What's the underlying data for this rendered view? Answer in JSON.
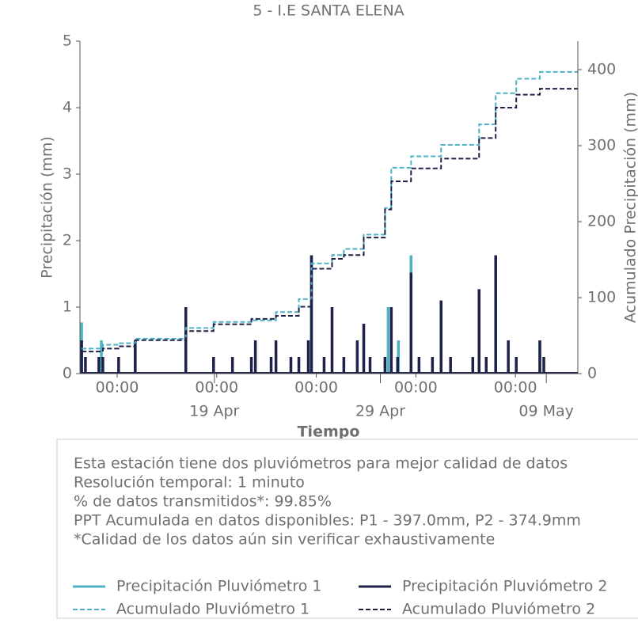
{
  "chart_data": {
    "type": "rain-gauge",
    "title": "5 - I.E SANTA ELENA",
    "xlabel": "Tiempo",
    "ylabel": "Precipitación (mm)",
    "y2label": "Acumulado Precipitación (mm)",
    "xlim": [
      0,
      30
    ],
    "xticks": [
      {
        "value": 2.24,
        "label": "00:00"
      },
      {
        "value": 8.24,
        "label": "00:00"
      },
      {
        "value": 14.24,
        "label": "00:00"
      },
      {
        "value": 20.24,
        "label": "00:00"
      },
      {
        "value": 26.24,
        "label": "00:00"
      }
    ],
    "xdate_ticks": [
      {
        "value": 8.1,
        "label": "19 Apr"
      },
      {
        "value": 18.1,
        "label": "29 Apr"
      },
      {
        "value": 28.1,
        "label": "09 May"
      }
    ],
    "ylim": [
      0,
      5
    ],
    "yticks": [
      0,
      1,
      2,
      3,
      4,
      5
    ],
    "y2lim": [
      0,
      437.5
    ],
    "y2ticks": [
      0,
      100,
      200,
      300,
      400
    ],
    "series": [
      {
        "name": "Precipitación Pluviómetro 1",
        "color": "#4db3c4",
        "style": "stem",
        "x": [
          0.1,
          1.29,
          3.33,
          6.38,
          13.95,
          18.57,
          19.19,
          19.95,
          21.76,
          24.05,
          25.05,
          27.71
        ],
        "values": [
          0.77,
          0.5,
          0.5,
          1.0,
          1.78,
          1.0,
          0.5,
          1.78,
          1.1,
          1.27,
          1.2,
          0.5
        ]
      },
      {
        "name": "Precipitación Pluviómetro 2",
        "color": "#1e2148",
        "style": "stem",
        "x": [
          0.1,
          0.33,
          1.14,
          1.38,
          2.33,
          3.33,
          6.38,
          8.05,
          9.19,
          10.33,
          10.57,
          11.52,
          11.81,
          12.71,
          13.19,
          13.76,
          13.95,
          14.71,
          15.19,
          15.9,
          16.71,
          17.1,
          17.48,
          18.38,
          18.76,
          19.14,
          19.95,
          20.43,
          21.24,
          21.76,
          22.33,
          23.67,
          24.05,
          24.48,
          25.05,
          25.81,
          26.29,
          27.71,
          27.95
        ],
        "values": [
          0.5,
          0.25,
          0.25,
          0.25,
          0.25,
          0.5,
          1.0,
          0.25,
          0.25,
          0.25,
          0.5,
          0.25,
          0.5,
          0.25,
          0.25,
          0.5,
          1.78,
          0.25,
          1.0,
          0.25,
          0.5,
          0.75,
          0.25,
          0.25,
          1.0,
          0.25,
          1.52,
          0.25,
          0.25,
          1.1,
          0.25,
          0.25,
          1.27,
          0.25,
          1.78,
          0.5,
          0.25,
          0.5,
          0.25
        ]
      },
      {
        "name": "Acumulado Pluviómetro 1",
        "color": "#4db3c4",
        "style": "step",
        "axis": "y2",
        "x": [
          0.1,
          1.38,
          2.33,
          3.33,
          6.38,
          8.05,
          10.33,
          11.81,
          13.19,
          13.95,
          15.19,
          15.9,
          17.1,
          18.38,
          18.76,
          19.95,
          21.76,
          24.05,
          25.05,
          26.29,
          27.71,
          30
        ],
        "values": [
          33,
          38,
          40,
          46,
          60,
          68,
          70,
          81,
          98,
          145,
          156,
          164,
          183,
          218,
          271,
          286,
          301,
          328,
          369,
          388,
          397,
          397
        ]
      },
      {
        "name": "Acumulado Pluviómetro 2",
        "color": "#1e2148",
        "style": "step",
        "axis": "y2",
        "x": [
          0.1,
          1.38,
          2.33,
          3.33,
          6.38,
          8.05,
          10.33,
          11.81,
          13.19,
          13.95,
          15.19,
          15.9,
          17.1,
          18.38,
          18.76,
          19.95,
          21.76,
          24.05,
          25.05,
          26.29,
          27.71,
          30
        ],
        "values": [
          29,
          33,
          36,
          44,
          56,
          65,
          72,
          76,
          88,
          138,
          151,
          156,
          179,
          216,
          253,
          270,
          283,
          310,
          350,
          367,
          374.9,
          374.9
        ]
      }
    ],
    "notes": [
      "Esta estación tiene dos pluviómetros para mejor calidad de datos",
      "Resolución temporal: 1 minuto",
      "% de datos transmitidos*: 99.85%",
      "PPT Acumulada en datos disponibles: P1 - 397.0mm, P2 - 374.9mm",
      "*Calidad de los datos aún sin verificar exhaustivamente"
    ]
  }
}
